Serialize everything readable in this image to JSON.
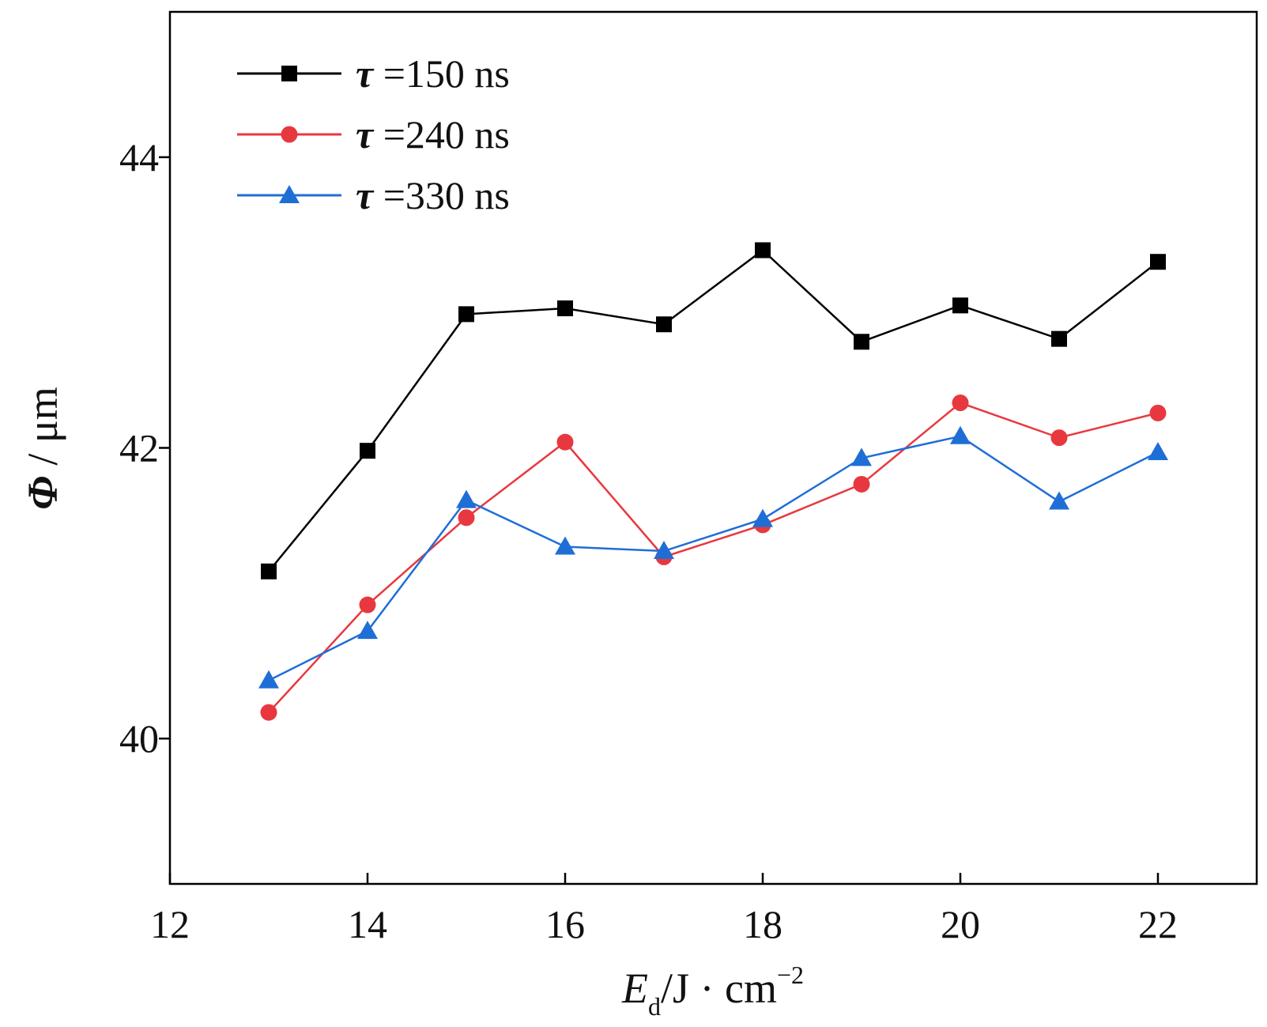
{
  "chart_data": {
    "type": "line",
    "xlabel": {
      "main": "E",
      "sub": "d",
      "rest": "/J · cm",
      "sup": "−2"
    },
    "ylabel": {
      "main": "Φ",
      "rest": " / μm"
    },
    "xlim": [
      12,
      23
    ],
    "ylim": [
      39,
      45
    ],
    "xticks": [
      12,
      14,
      16,
      18,
      20,
      22
    ],
    "yticks": [
      40,
      42,
      44
    ],
    "grid": false,
    "legend_position": "top-left",
    "x": [
      13,
      14,
      15,
      16,
      17,
      18,
      19,
      20,
      21,
      22
    ],
    "series": [
      {
        "symbol": "τ",
        "label": " =150 ns",
        "color": "#000000",
        "marker": "square",
        "values": [
          41.15,
          41.98,
          42.92,
          42.96,
          42.85,
          43.36,
          42.73,
          42.98,
          42.75,
          43.28
        ]
      },
      {
        "symbol": "τ",
        "label": " =240 ns",
        "color": "#e8383f",
        "marker": "circle",
        "values": [
          40.18,
          40.92,
          41.52,
          42.04,
          41.25,
          41.47,
          41.75,
          42.31,
          42.07,
          42.24
        ]
      },
      {
        "symbol": "τ",
        "label": " =330 ns",
        "color": "#1f6ed6",
        "marker": "triangle",
        "values": [
          40.4,
          40.74,
          41.64,
          41.32,
          41.29,
          41.51,
          41.93,
          42.08,
          41.63,
          41.97
        ]
      }
    ]
  }
}
